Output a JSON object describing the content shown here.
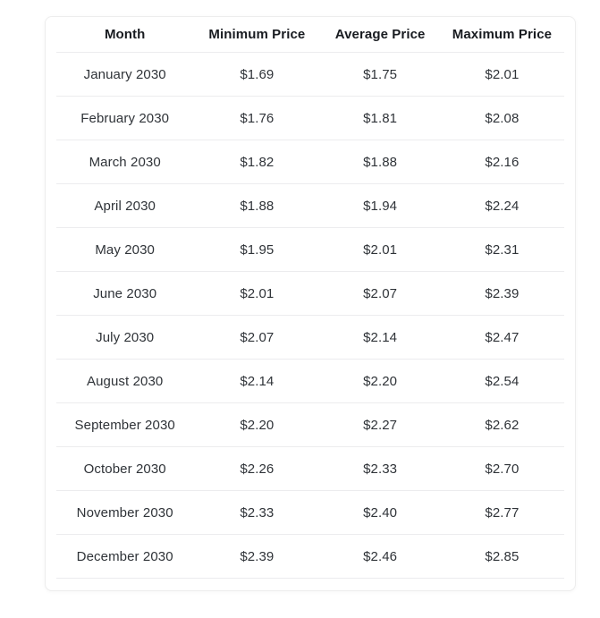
{
  "page": {
    "background_color": "#ffffff"
  },
  "card": {
    "background_color": "#ffffff",
    "border_color": "#ededed",
    "divider_color": "#ececee",
    "header_text_color": "#181b20",
    "cell_text_color": "#2f3338"
  },
  "table": {
    "columns": [
      {
        "key": "month",
        "label": "Month"
      },
      {
        "key": "min",
        "label": "Minimum Price"
      },
      {
        "key": "avg",
        "label": "Average Price"
      },
      {
        "key": "max",
        "label": "Maximum Price"
      }
    ],
    "rows": [
      {
        "month": "January 2030",
        "min": "$1.69",
        "avg": "$1.75",
        "max": "$2.01"
      },
      {
        "month": "February 2030",
        "min": "$1.76",
        "avg": "$1.81",
        "max": "$2.08"
      },
      {
        "month": "March 2030",
        "min": "$1.82",
        "avg": "$1.88",
        "max": "$2.16"
      },
      {
        "month": "April 2030",
        "min": "$1.88",
        "avg": "$1.94",
        "max": "$2.24"
      },
      {
        "month": "May 2030",
        "min": "$1.95",
        "avg": "$2.01",
        "max": "$2.31"
      },
      {
        "month": "June 2030",
        "min": "$2.01",
        "avg": "$2.07",
        "max": "$2.39"
      },
      {
        "month": "July 2030",
        "min": "$2.07",
        "avg": "$2.14",
        "max": "$2.47"
      },
      {
        "month": "August 2030",
        "min": "$2.14",
        "avg": "$2.20",
        "max": "$2.54"
      },
      {
        "month": "September 2030",
        "min": "$2.20",
        "avg": "$2.27",
        "max": "$2.62"
      },
      {
        "month": "October 2030",
        "min": "$2.26",
        "avg": "$2.33",
        "max": "$2.70"
      },
      {
        "month": "November 2030",
        "min": "$2.33",
        "avg": "$2.40",
        "max": "$2.77"
      },
      {
        "month": "December 2030",
        "min": "$2.39",
        "avg": "$2.46",
        "max": "$2.85"
      }
    ]
  },
  "chart_data": {
    "type": "table",
    "title": "",
    "columns": [
      "Month",
      "Minimum Price",
      "Average Price",
      "Maximum Price"
    ],
    "categories": [
      "January 2030",
      "February 2030",
      "March 2030",
      "April 2030",
      "May 2030",
      "June 2030",
      "July 2030",
      "August 2030",
      "September 2030",
      "October 2030",
      "November 2030",
      "December 2030"
    ],
    "series": [
      {
        "name": "Minimum Price",
        "values": [
          1.69,
          1.76,
          1.82,
          1.88,
          1.95,
          2.01,
          2.07,
          2.14,
          2.2,
          2.26,
          2.33,
          2.39
        ]
      },
      {
        "name": "Average Price",
        "values": [
          1.75,
          1.81,
          1.88,
          1.94,
          2.01,
          2.07,
          2.14,
          2.2,
          2.27,
          2.33,
          2.4,
          2.46
        ]
      },
      {
        "name": "Maximum Price",
        "values": [
          2.01,
          2.08,
          2.16,
          2.24,
          2.31,
          2.39,
          2.47,
          2.54,
          2.62,
          2.7,
          2.77,
          2.85
        ]
      }
    ],
    "unit": "$",
    "grid": "horizontal-dividers",
    "legend": "none"
  }
}
